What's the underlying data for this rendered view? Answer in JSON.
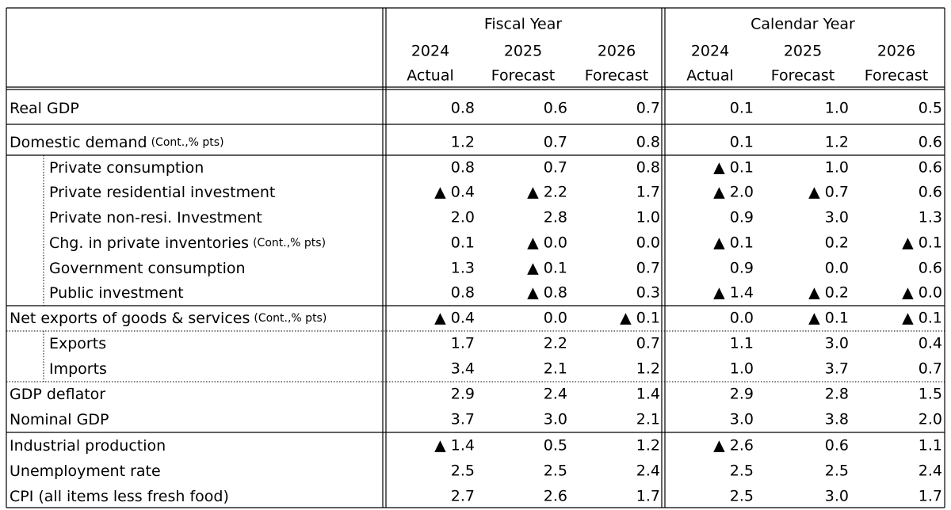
{
  "header": {
    "groups": [
      "Fiscal Year",
      "Calendar Year"
    ],
    "years": [
      "2024",
      "2025",
      "2026",
      "2024",
      "2025",
      "2026"
    ],
    "kinds": [
      "Actual",
      "Forecast",
      "Forecast",
      "Actual",
      "Forecast",
      "Forecast"
    ]
  },
  "rows": [
    {
      "label": "Real GDP",
      "values": [
        "0.8",
        "0.6",
        "0.7",
        "0.1",
        "1.0",
        "0.5"
      ]
    },
    {
      "label": "Domestic demand",
      "note": "(Cont.,% pts)",
      "values": [
        "1.2",
        "0.7",
        "0.8",
        "0.1",
        "1.2",
        "0.6"
      ]
    },
    {
      "label": "Private consumption",
      "values": [
        "0.8",
        "0.7",
        "0.8",
        "▲ 0.1",
        "1.0",
        "0.6"
      ]
    },
    {
      "label": "Private residential investment",
      "values": [
        "▲ 0.4",
        "▲ 2.2",
        "1.7",
        "▲ 2.0",
        "▲ 0.7",
        "0.6"
      ]
    },
    {
      "label": "Private non-resi. Investment",
      "values": [
        "2.0",
        "2.8",
        "1.0",
        "0.9",
        "3.0",
        "1.3"
      ]
    },
    {
      "label": "Chg. in private inventories",
      "note": "(Cont.,% pts)",
      "values": [
        "0.1",
        "▲ 0.0",
        "0.0",
        "▲ 0.1",
        "0.2",
        "▲ 0.1"
      ]
    },
    {
      "label": "Government consumption",
      "values": [
        "1.3",
        "▲ 0.1",
        "0.7",
        "0.9",
        "0.0",
        "0.6"
      ]
    },
    {
      "label": "Public investment",
      "values": [
        "0.8",
        "▲ 0.8",
        "0.3",
        "▲ 1.4",
        "▲ 0.2",
        "▲ 0.0"
      ]
    },
    {
      "label": "Net exports of goods & services",
      "note": "(Cont.,% pts)",
      "values": [
        "▲ 0.4",
        "0.0",
        "▲ 0.1",
        "0.0",
        "▲ 0.1",
        "▲ 0.1"
      ]
    },
    {
      "label": "Exports",
      "values": [
        "1.7",
        "2.2",
        "0.7",
        "1.1",
        "3.0",
        "0.4"
      ]
    },
    {
      "label": "Imports",
      "values": [
        "3.4",
        "2.1",
        "1.2",
        "1.0",
        "3.7",
        "0.7"
      ]
    },
    {
      "label": "GDP deflator",
      "values": [
        "2.9",
        "2.4",
        "1.4",
        "2.9",
        "2.8",
        "1.5"
      ]
    },
    {
      "label": "Nominal GDP",
      "values": [
        "3.7",
        "3.0",
        "2.1",
        "3.0",
        "3.8",
        "2.0"
      ]
    },
    {
      "label": "Industrial production",
      "values": [
        "▲ 1.4",
        "0.5",
        "1.2",
        "▲ 2.6",
        "0.6",
        "1.1"
      ]
    },
    {
      "label": "Unemployment rate",
      "values": [
        "2.5",
        "2.5",
        "2.4",
        "2.5",
        "2.5",
        "2.4"
      ]
    },
    {
      "label": "CPI (all items less fresh food)",
      "values": [
        "2.7",
        "2.6",
        "1.7",
        "2.5",
        "3.0",
        "1.7"
      ]
    }
  ]
}
